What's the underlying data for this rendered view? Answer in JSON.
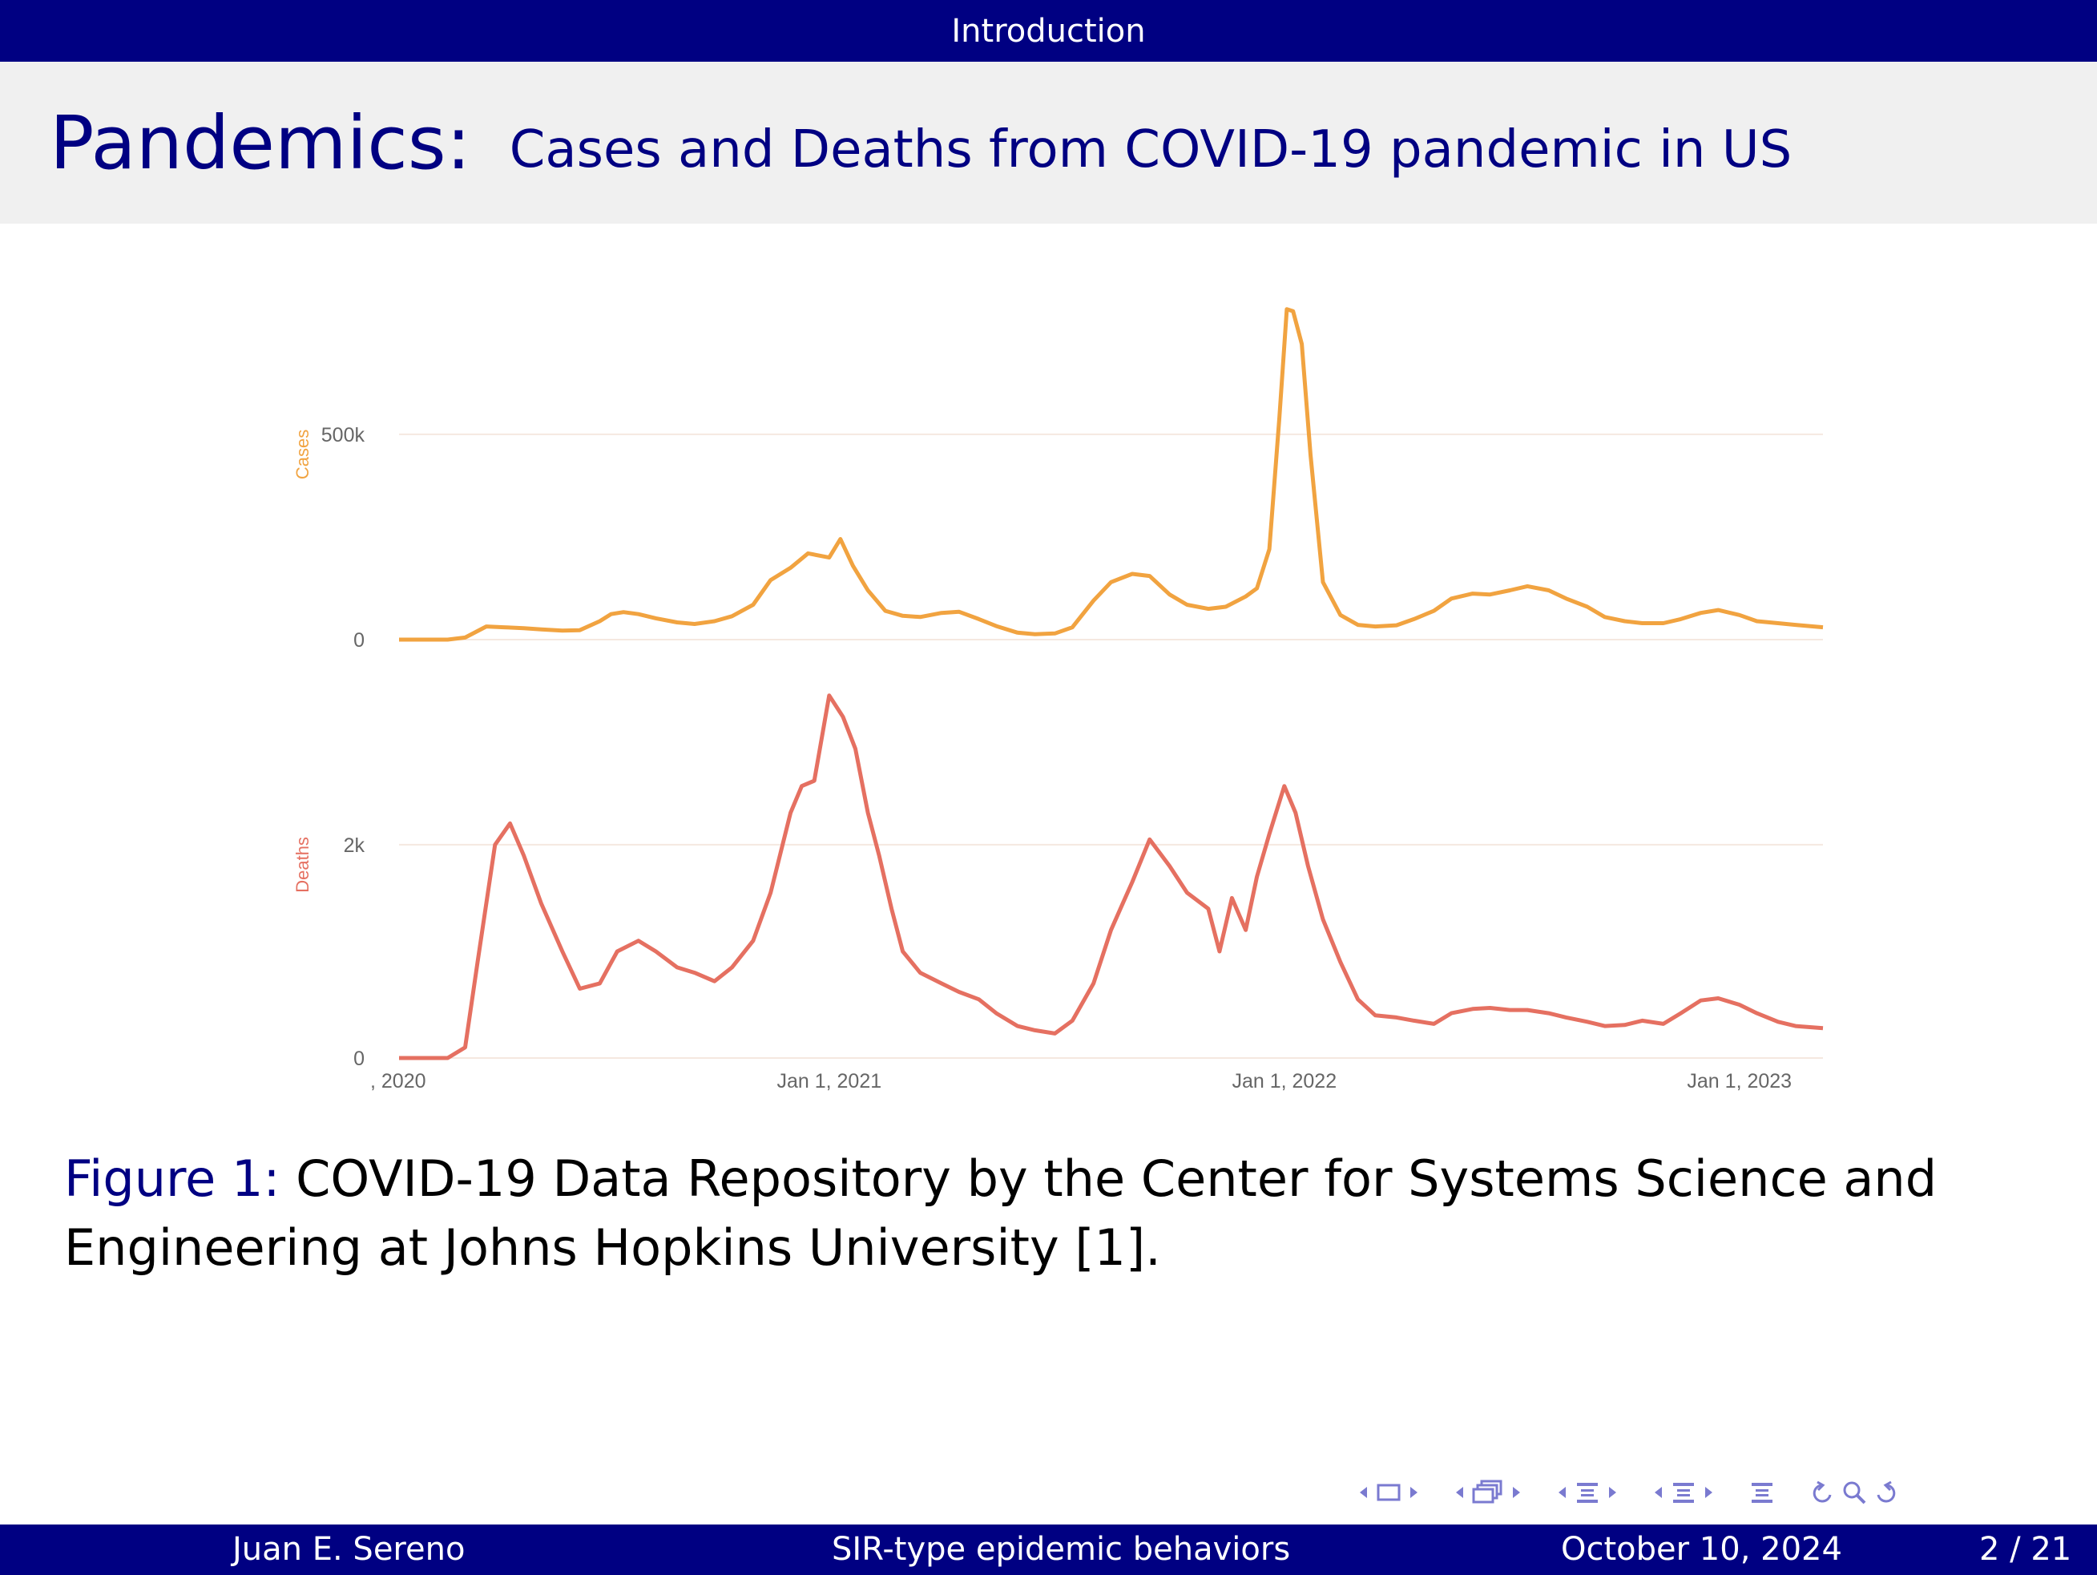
{
  "header": {
    "section": "Introduction"
  },
  "slide": {
    "title": "Pandemics:",
    "subtitle": "Cases and Deaths from COVID-19 pandemic in US"
  },
  "colors": {
    "theme": "#000082",
    "cases": "#f1a340",
    "deaths": "#e57061",
    "title_bar_bg": "#f0f0f0"
  },
  "chart_data": {
    "type": "line",
    "x_ticks": [
      ", 2020",
      "Jan 1, 2021",
      "Jan 1, 2022",
      "Jan 1, 2023"
    ],
    "grid": true,
    "panels": [
      {
        "name": "Cases",
        "ylabel": "Cases",
        "y_ticks": [
          "0",
          "500k"
        ],
        "ylim": [
          0,
          820000
        ],
        "series": [
          {
            "name": "Cases",
            "x": [
              "2020-01-22",
              "2020-03-01",
              "2020-03-15",
              "2020-04-01",
              "2020-04-15",
              "2020-05-01",
              "2020-05-15",
              "2020-06-01",
              "2020-06-15",
              "2020-07-01",
              "2020-07-10",
              "2020-07-20",
              "2020-08-01",
              "2020-08-15",
              "2020-09-01",
              "2020-09-15",
              "2020-10-01",
              "2020-10-15",
              "2020-11-01",
              "2020-11-15",
              "2020-12-01",
              "2020-12-15",
              "2021-01-01",
              "2021-01-10",
              "2021-01-20",
              "2021-02-01",
              "2021-02-15",
              "2021-03-01",
              "2021-03-15",
              "2021-04-01",
              "2021-04-15",
              "2021-05-01",
              "2021-05-15",
              "2021-06-01",
              "2021-06-15",
              "2021-07-01",
              "2021-07-15",
              "2021-08-01",
              "2021-08-15",
              "2021-09-01",
              "2021-09-15",
              "2021-10-01",
              "2021-10-15",
              "2021-11-01",
              "2021-11-15",
              "2021-12-01",
              "2021-12-10",
              "2021-12-20",
              "2021-12-28",
              "2022-01-03",
              "2022-01-08",
              "2022-01-15",
              "2022-01-22",
              "2022-02-01",
              "2022-02-15",
              "2022-03-01",
              "2022-03-15",
              "2022-04-01",
              "2022-04-15",
              "2022-05-01",
              "2022-05-15",
              "2022-06-01",
              "2022-06-15",
              "2022-07-01",
              "2022-07-15",
              "2022-08-01",
              "2022-08-15",
              "2022-09-01",
              "2022-09-15",
              "2022-10-01",
              "2022-10-15",
              "2022-11-01",
              "2022-11-15",
              "2022-12-01",
              "2022-12-15",
              "2023-01-01",
              "2023-01-15",
              "2023-02-01",
              "2023-02-15",
              "2023-03-09"
            ],
            "y": [
              0,
              0,
              5000,
              32000,
              30000,
              28000,
              25000,
              22000,
              23000,
              45000,
              62000,
              67000,
              62000,
              52000,
              42000,
              38000,
              45000,
              57000,
              85000,
              145000,
              175000,
              210000,
              200000,
              245000,
              180000,
              120000,
              70000,
              58000,
              55000,
              65000,
              68000,
              50000,
              33000,
              17000,
              13000,
              15000,
              30000,
              95000,
              140000,
              160000,
              155000,
              110000,
              85000,
              75000,
              80000,
              105000,
              125000,
              220000,
              540000,
              805000,
              800000,
              720000,
              450000,
              140000,
              60000,
              36000,
              32000,
              35000,
              50000,
              70000,
              100000,
              112000,
              110000,
              120000,
              130000,
              120000,
              100000,
              80000,
              55000,
              45000,
              40000,
              40000,
              50000,
              65000,
              72000,
              60000,
              45000,
              40000,
              36000,
              30000
            ]
          }
        ]
      },
      {
        "name": "Deaths",
        "ylabel": "Deaths",
        "y_ticks": [
          "0",
          "2k"
        ],
        "ylim": [
          0,
          3450
        ],
        "series": [
          {
            "name": "Deaths",
            "x": [
              "2020-01-22",
              "2020-03-01",
              "2020-03-15",
              "2020-03-25",
              "2020-04-08",
              "2020-04-20",
              "2020-05-01",
              "2020-05-15",
              "2020-06-01",
              "2020-06-15",
              "2020-07-01",
              "2020-07-15",
              "2020-08-01",
              "2020-08-15",
              "2020-09-01",
              "2020-09-15",
              "2020-10-01",
              "2020-10-15",
              "2020-11-01",
              "2020-11-15",
              "2020-12-01",
              "2020-12-10",
              "2020-12-20",
              "2021-01-01",
              "2021-01-12",
              "2021-01-22",
              "2021-02-01",
              "2021-02-10",
              "2021-02-20",
              "2021-03-01",
              "2021-03-15",
              "2021-04-01",
              "2021-04-15",
              "2021-05-01",
              "2021-05-15",
              "2021-06-01",
              "2021-06-15",
              "2021-07-01",
              "2021-07-15",
              "2021-08-01",
              "2021-08-15",
              "2021-09-01",
              "2021-09-15",
              "2021-10-01",
              "2021-10-15",
              "2021-11-01",
              "2021-11-10",
              "2021-11-20",
              "2021-12-01",
              "2021-12-10",
              "2021-12-20",
              "2022-01-01",
              "2022-01-10",
              "2022-01-20",
              "2022-02-01",
              "2022-02-15",
              "2022-03-01",
              "2022-03-15",
              "2022-04-01",
              "2022-04-15",
              "2022-05-01",
              "2022-05-15",
              "2022-06-01",
              "2022-06-15",
              "2022-07-01",
              "2022-07-15",
              "2022-08-01",
              "2022-08-15",
              "2022-09-01",
              "2022-09-15",
              "2022-10-01",
              "2022-10-15",
              "2022-11-01",
              "2022-11-15",
              "2022-12-01",
              "2022-12-15",
              "2023-01-01",
              "2023-01-15",
              "2023-02-01",
              "2023-02-15",
              "2023-03-09"
            ],
            "y": [
              0,
              0,
              100,
              900,
              2000,
              2200,
              1900,
              1450,
              1000,
              650,
              700,
              1000,
              1100,
              1000,
              850,
              800,
              720,
              850,
              1100,
              1550,
              2300,
              2550,
              2600,
              3400,
              3200,
              2900,
              2300,
              1900,
              1400,
              1000,
              800,
              700,
              620,
              550,
              420,
              300,
              260,
              230,
              350,
              700,
              1200,
              1650,
              2050,
              1800,
              1550,
              1400,
              1000,
              1500,
              1200,
              1700,
              2100,
              2550,
              2300,
              1800,
              1300,
              900,
              550,
              400,
              380,
              350,
              320,
              420,
              460,
              470,
              450,
              450,
              420,
              380,
              340,
              300,
              310,
              350,
              320,
              420,
              540,
              560,
              500,
              420,
              340,
              300,
              280
            ]
          }
        ]
      }
    ]
  },
  "caption": {
    "label": "Figure 1:",
    "text": "COVID-19 Data Repository by the Center for Systems Science and Engineering at Johns Hopkins University [1]."
  },
  "nav": {
    "icons": [
      "arrow-left-icon",
      "frame-icon",
      "arrow-right-icon",
      "arrow-left-icon",
      "subsection-icon",
      "arrow-right-icon",
      "arrow-left-icon",
      "section-icon",
      "arrow-right-icon",
      "arrow-left-icon",
      "section-icon",
      "arrow-right-icon",
      "toc-icon",
      "search-icon",
      "back-icon",
      "forward-icon"
    ]
  },
  "footer": {
    "author": "Juan E. Sereno",
    "talk_title": "SIR-type epidemic behaviors",
    "date": "October 10, 2024",
    "page": "2 / 21"
  }
}
